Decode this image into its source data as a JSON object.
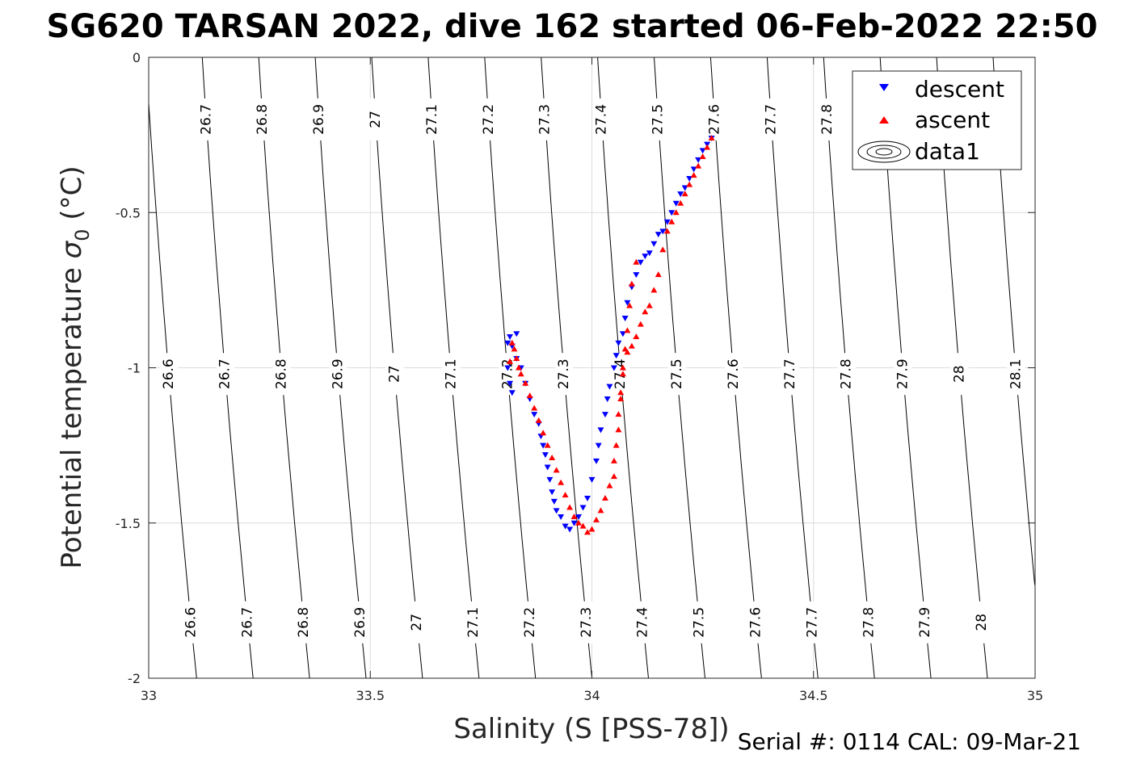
{
  "chart_data": {
    "type": "scatter",
    "title": "SG620 TARSAN 2022, dive 162 started 06-Feb-2022 22:50",
    "xlabel": "Salinity (S [PSS-78])",
    "ylabel": "Potential temperature σ 0 (°C)",
    "ylabel_parts": {
      "main": "Potential temperature ",
      "sigma": "σ",
      "sub": "0",
      "unit": " (°C)"
    },
    "xlim": [
      33,
      35
    ],
    "ylim": [
      -2,
      0
    ],
    "xticks": [
      33,
      33.5,
      34,
      34.5,
      35
    ],
    "xtick_labels": [
      "33",
      "33.5",
      "34",
      "34.5",
      "35"
    ],
    "yticks": [
      0,
      -0.5,
      -1,
      -1.5,
      -2
    ],
    "ytick_labels": [
      "0",
      "-0.5",
      "-1",
      "-1.5",
      "-2"
    ],
    "grid": true,
    "legend_position": "top-right",
    "legend": [
      "descent",
      "ascent",
      "data1"
    ],
    "footer": "Serial #: 0114  CAL: 09-Mar-21",
    "colors": {
      "descent": "#0000ff",
      "ascent": "#ff0000",
      "contour": "#000000",
      "grid": "#dcdcdc"
    },
    "contours": {
      "levels": [
        26.6,
        26.7,
        26.8,
        26.9,
        27.0,
        27.1,
        27.2,
        27.3,
        27.4,
        27.5,
        27.6,
        27.7,
        27.8,
        27.9,
        28.0,
        28.1
      ],
      "level_labels": [
        "26.6",
        "26.7",
        "26.8",
        "26.9",
        "27",
        "27.1",
        "27.2",
        "27.3",
        "27.4",
        "27.5",
        "27.6",
        "27.7",
        "27.8",
        "27.9",
        "28",
        "28.1"
      ]
    },
    "series": [
      {
        "name": "descent",
        "marker": "triangle-down",
        "x": [
          34.27,
          34.26,
          34.25,
          34.24,
          34.23,
          34.22,
          34.21,
          34.2,
          34.19,
          34.18,
          34.17,
          34.16,
          34.15,
          34.14,
          34.13,
          34.12,
          34.11,
          34.1,
          34.09,
          34.08,
          34.075,
          34.07,
          34.06,
          34.055,
          34.05,
          34.04,
          34.035,
          34.03,
          34.02,
          34.015,
          34.01,
          34.0,
          33.99,
          33.98,
          33.97,
          33.96,
          33.95,
          33.94,
          33.93,
          33.92,
          33.915,
          33.91,
          33.905,
          33.9,
          33.895,
          33.89,
          33.885,
          33.88,
          33.87,
          33.86,
          33.85,
          33.84,
          33.83,
          33.82,
          33.815,
          33.81,
          33.81,
          33.815,
          33.82,
          33.83
        ],
        "y": [
          -0.26,
          -0.28,
          -0.3,
          -0.33,
          -0.36,
          -0.39,
          -0.42,
          -0.44,
          -0.47,
          -0.5,
          -0.53,
          -0.56,
          -0.57,
          -0.6,
          -0.63,
          -0.64,
          -0.66,
          -0.7,
          -0.74,
          -0.79,
          -0.84,
          -0.89,
          -0.92,
          -0.96,
          -1.0,
          -1.06,
          -1.1,
          -1.15,
          -1.2,
          -1.25,
          -1.3,
          -1.36,
          -1.42,
          -1.45,
          -1.48,
          -1.5,
          -1.52,
          -1.51,
          -1.48,
          -1.46,
          -1.43,
          -1.4,
          -1.36,
          -1.32,
          -1.28,
          -1.25,
          -1.22,
          -1.18,
          -1.15,
          -1.1,
          -1.05,
          -1.0,
          -0.97,
          -0.93,
          -0.9,
          -0.92,
          -1.0,
          -1.05,
          -1.08,
          -0.89
        ]
      },
      {
        "name": "ascent",
        "marker": "triangle-up",
        "x": [
          34.27,
          34.26,
          34.25,
          34.24,
          34.23,
          34.22,
          34.21,
          34.2,
          34.19,
          34.18,
          34.17,
          34.16,
          34.15,
          34.14,
          34.13,
          34.12,
          34.11,
          34.1,
          34.09,
          34.08,
          34.07,
          34.065,
          34.06,
          34.05,
          34.04,
          34.03,
          34.02,
          34.01,
          34.0,
          33.99,
          33.98,
          33.97,
          33.96,
          33.95,
          33.94,
          33.93,
          33.92,
          33.91,
          33.9,
          33.89,
          33.88,
          33.87,
          33.86,
          33.85,
          33.84,
          33.835,
          33.83,
          33.825,
          33.82,
          33.815,
          34.1,
          34.09,
          34.085,
          34.08,
          34.075,
          34.07,
          34.065,
          34.06,
          34.055,
          34.05
        ],
        "y": [
          -0.26,
          -0.29,
          -0.32,
          -0.35,
          -0.38,
          -0.41,
          -0.44,
          -0.47,
          -0.5,
          -0.53,
          -0.56,
          -0.62,
          -0.7,
          -0.75,
          -0.8,
          -0.82,
          -0.86,
          -0.9,
          -0.93,
          -0.95,
          -1.02,
          -1.1,
          -1.2,
          -1.3,
          -1.38,
          -1.42,
          -1.46,
          -1.49,
          -1.52,
          -1.53,
          -1.51,
          -1.5,
          -1.48,
          -1.45,
          -1.41,
          -1.37,
          -1.33,
          -1.29,
          -1.25,
          -1.21,
          -1.17,
          -1.13,
          -1.09,
          -1.05,
          -1.02,
          -1.0,
          -0.97,
          -0.94,
          -0.92,
          -0.98,
          -0.66,
          -0.73,
          -0.8,
          -0.88,
          -0.94,
          -1.0,
          -1.08,
          -1.15,
          -1.25,
          -1.35
        ]
      }
    ]
  }
}
